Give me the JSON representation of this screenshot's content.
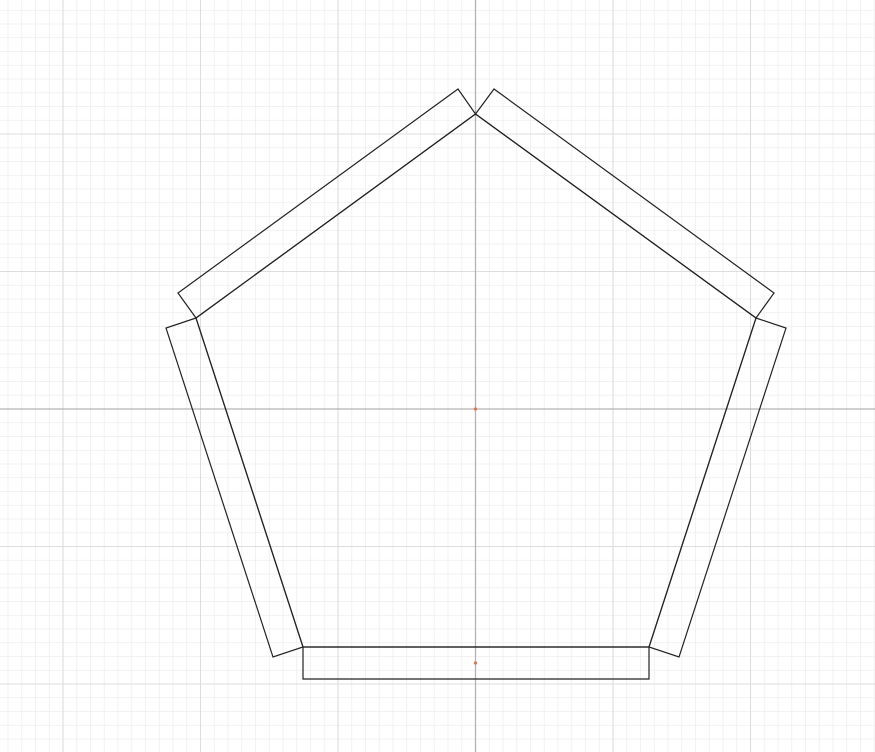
{
  "canvas": {
    "background_color": "#ffffff",
    "minor_grid_color": "#eeeeee",
    "major_grid_color": "#dddddd",
    "axis_color": "#b3b3b3",
    "outline_color": "#222222",
    "origin_marker_color": "#e0744a"
  },
  "shapes": {
    "pentagon": {
      "sides": 5
    },
    "side_panels": [
      {
        "name": "top-left"
      },
      {
        "name": "top-right"
      },
      {
        "name": "right"
      },
      {
        "name": "bottom"
      },
      {
        "name": "left"
      }
    ]
  }
}
